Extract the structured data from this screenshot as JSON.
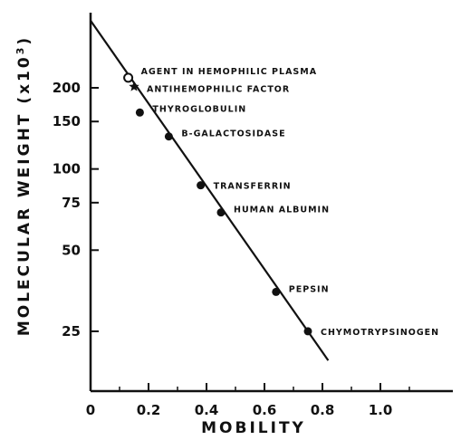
{
  "chart_data": {
    "type": "scatter",
    "xlabel": "MOBILITY",
    "ylabel": "MOLECULAR WEIGHT (x10",
    "ylabel_sup": "3",
    "ylabel_close": ")",
    "xlim": [
      0,
      1.25
    ],
    "ylim": [
      15,
      380
    ],
    "yscale": "log",
    "grid": false,
    "x_ticks": [
      {
        "value": 0,
        "label": "0"
      },
      {
        "value": 0.2,
        "label": "0.2"
      },
      {
        "value": 0.4,
        "label": "0.4"
      },
      {
        "value": 0.6,
        "label": "0.6"
      },
      {
        "value": 0.8,
        "label": "0.8"
      },
      {
        "value": 1.0,
        "label": "1.0"
      }
    ],
    "x_minor_ticks": [
      0.1,
      0.3,
      0.5,
      0.7,
      0.9,
      1.1
    ],
    "y_ticks": [
      {
        "value": 25,
        "label": "25"
      },
      {
        "value": 50,
        "label": "50"
      },
      {
        "value": 75,
        "label": "75"
      },
      {
        "value": 100,
        "label": "100"
      },
      {
        "value": 150,
        "label": "150"
      },
      {
        "value": 200,
        "label": "200"
      }
    ],
    "points": [
      {
        "x": 0.13,
        "y": 218,
        "marker": "open-circle",
        "label": "AGENT IN HEMOPHILIC PLASMA",
        "label_dy": -8
      },
      {
        "x": 0.15,
        "y": 202,
        "marker": "star",
        "label": "ANTIHEMOPHILIC FACTOR",
        "label_dy": 2
      },
      {
        "x": 0.17,
        "y": 162,
        "marker": "filled-circle",
        "label": "THYROGLOBULIN",
        "label_dy": -5
      },
      {
        "x": 0.27,
        "y": 132,
        "marker": "filled-circle",
        "label": "B-GALACTOSIDASE",
        "label_dy": -4
      },
      {
        "x": 0.38,
        "y": 87,
        "marker": "filled-circle",
        "label": "TRANSFERRIN",
        "label_dy": 0
      },
      {
        "x": 0.45,
        "y": 69,
        "marker": "filled-circle",
        "label": "HUMAN ALBUMIN",
        "label_dy": -4
      },
      {
        "x": 0.64,
        "y": 35,
        "marker": "filled-circle",
        "label": "PEPSIN",
        "label_dy": -4
      },
      {
        "x": 0.75,
        "y": 25,
        "marker": "filled-circle",
        "label": "CHYMOTRYPSINOGEN",
        "label_dy": 0
      }
    ],
    "fit_line": {
      "x0": 0.0,
      "y0": 355,
      "x1": 0.82,
      "y1": 19.5
    }
  }
}
